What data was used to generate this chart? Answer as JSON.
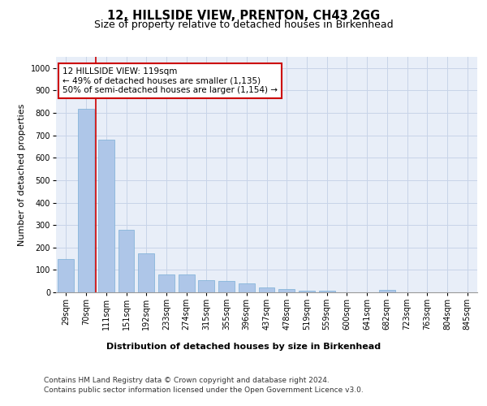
{
  "title1": "12, HILLSIDE VIEW, PRENTON, CH43 2GG",
  "title2": "Size of property relative to detached houses in Birkenhead",
  "xlabel": "Distribution of detached houses by size in Birkenhead",
  "ylabel": "Number of detached properties",
  "categories": [
    "29sqm",
    "70sqm",
    "111sqm",
    "151sqm",
    "192sqm",
    "233sqm",
    "274sqm",
    "315sqm",
    "355sqm",
    "396sqm",
    "437sqm",
    "478sqm",
    "519sqm",
    "559sqm",
    "600sqm",
    "641sqm",
    "682sqm",
    "723sqm",
    "763sqm",
    "804sqm",
    "845sqm"
  ],
  "values": [
    150,
    820,
    680,
    280,
    175,
    80,
    78,
    55,
    52,
    40,
    20,
    15,
    8,
    6,
    0,
    0,
    10,
    0,
    0,
    0,
    0
  ],
  "bar_color": "#aec6e8",
  "bar_edge_color": "#7aaed6",
  "vline_index": 2,
  "vline_color": "#cc0000",
  "annotation_text": "12 HILLSIDE VIEW: 119sqm\n← 49% of detached houses are smaller (1,135)\n50% of semi-detached houses are larger (1,154) →",
  "annotation_box_color": "#ffffff",
  "annotation_box_edge": "#cc0000",
  "ylim": [
    0,
    1050
  ],
  "yticks": [
    0,
    100,
    200,
    300,
    400,
    500,
    600,
    700,
    800,
    900,
    1000
  ],
  "grid_color": "#c8d4e8",
  "background_color": "#e8eef8",
  "footer1": "Contains HM Land Registry data © Crown copyright and database right 2024.",
  "footer2": "Contains public sector information licensed under the Open Government Licence v3.0.",
  "title_fontsize": 10.5,
  "subtitle_fontsize": 9,
  "axis_label_fontsize": 8,
  "tick_fontsize": 7,
  "annotation_fontsize": 7.5,
  "footer_fontsize": 6.5
}
